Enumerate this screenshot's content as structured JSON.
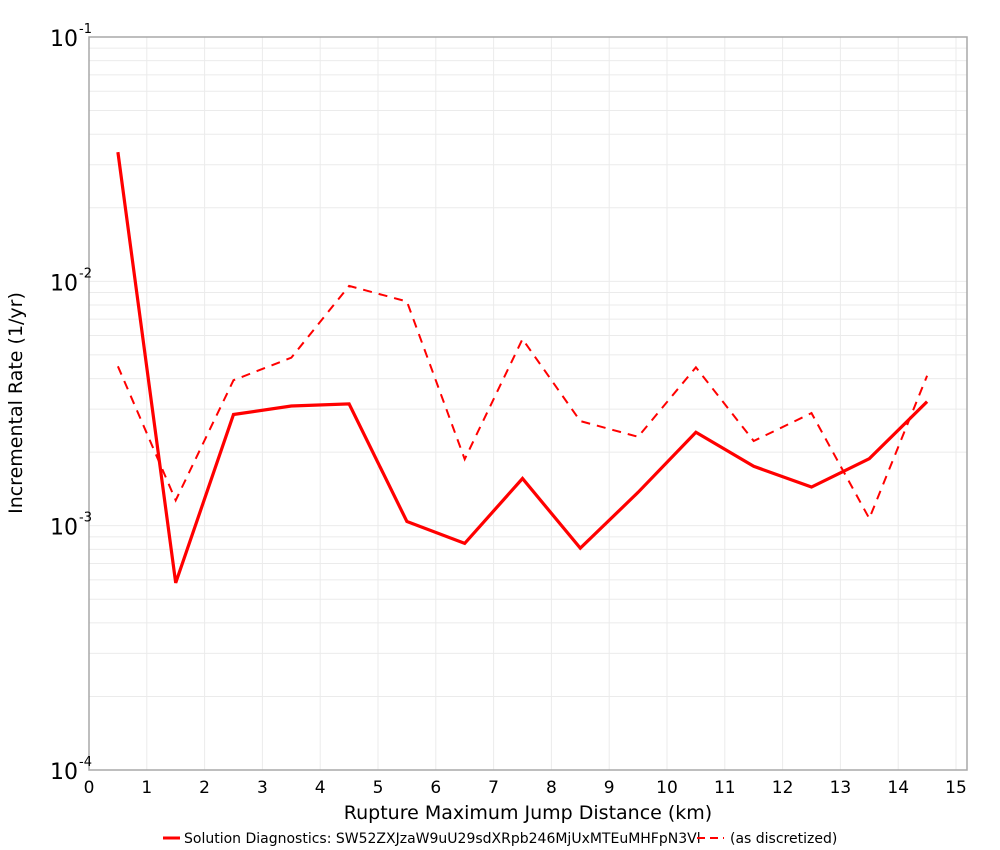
{
  "chart_data": {
    "type": "line",
    "title": "",
    "xlabel": "Rupture Maximum Jump Distance (km)",
    "ylabel": "Incremental Rate (1/yr)",
    "xlim": [
      0,
      15.2
    ],
    "ylim": [
      0.0001,
      0.1
    ],
    "yscale": "log",
    "grid": true,
    "legend_position": "bottom",
    "x_ticks": [
      "0",
      "1",
      "2",
      "3",
      "4",
      "5",
      "6",
      "7",
      "8",
      "9",
      "10",
      "11",
      "12",
      "13",
      "14",
      "15"
    ],
    "y_ticks": [
      {
        "base": "10",
        "exp": "-1",
        "value": 0.1
      },
      {
        "base": "10",
        "exp": "-2",
        "value": 0.01
      },
      {
        "base": "10",
        "exp": "-3",
        "value": 0.001
      },
      {
        "base": "10",
        "exp": "-4",
        "value": 0.0001
      }
    ],
    "x": [
      0.5,
      1.5,
      2.5,
      3.5,
      4.5,
      5.5,
      6.5,
      7.5,
      8.5,
      9.5,
      10.5,
      11.5,
      12.5,
      13.5,
      14.5
    ],
    "series": [
      {
        "name": "Solution Diagnostics: SW52ZXJzaW9uU29sdXRpb246MjUxMTEuMHFpN3Vl",
        "style": "solid",
        "color": "#ff0000",
        "values": [
          0.0338,
          0.000583,
          0.00285,
          0.00309,
          0.00315,
          0.00104,
          0.000846,
          0.00156,
          0.000809,
          0.00137,
          0.00241,
          0.00175,
          0.00144,
          0.00188,
          0.00322
        ]
      },
      {
        "name": "(as discretized)",
        "style": "dashed",
        "color": "#ff0000",
        "values": [
          0.00449,
          0.00127,
          0.00394,
          0.00487,
          0.00958,
          0.00827,
          0.00187,
          0.0058,
          0.00268,
          0.00231,
          0.00445,
          0.00222,
          0.00289,
          0.00107,
          0.00411
        ]
      }
    ]
  },
  "colors": {
    "series": "#ff0000",
    "grid": "#ebebeb",
    "axis": "#a8a8a8"
  }
}
